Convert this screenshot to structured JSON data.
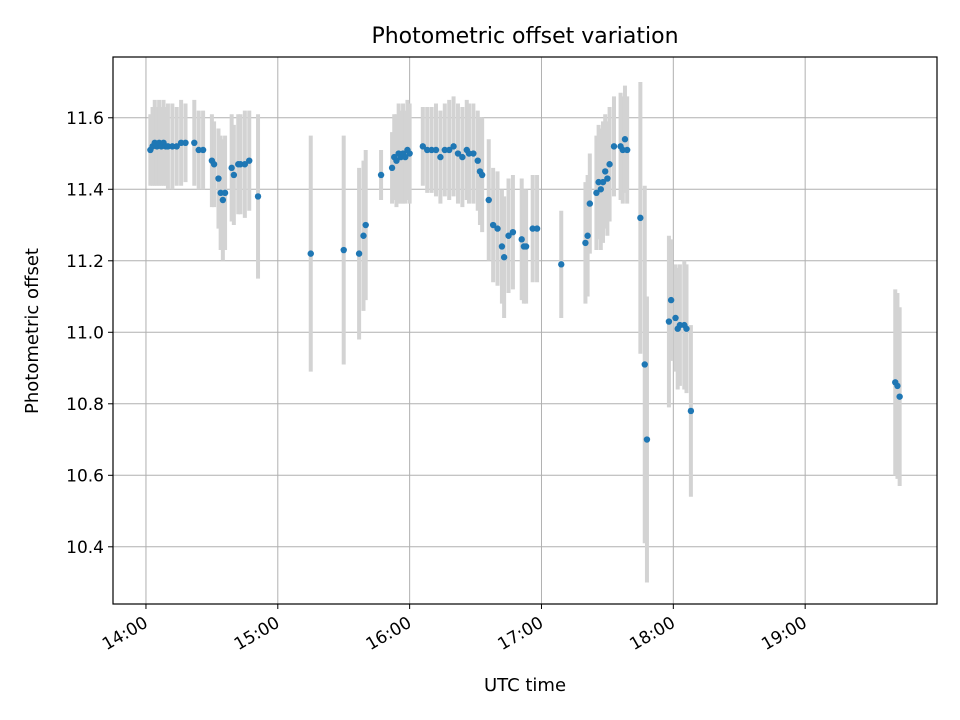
{
  "chart_data": {
    "type": "scatter",
    "title": "Photometric offset variation",
    "xlabel": "UTC time",
    "ylabel": "Photometric offset",
    "xlim": [
      "13:45",
      "20:00"
    ],
    "ylim": [
      10.24,
      11.77
    ],
    "x_ticks": [
      "14:00",
      "15:00",
      "16:00",
      "17:00",
      "18:00",
      "19:00"
    ],
    "y_ticks": [
      10.4,
      10.6,
      10.8,
      11.0,
      11.2,
      11.4,
      11.6
    ],
    "grid": true,
    "colors": {
      "point": "#1f77b4",
      "errorbar": "#d3d3d3",
      "grid": "#b0b0b0"
    },
    "points": [
      {
        "t": "14:02",
        "y": 11.51,
        "err": 0.1
      },
      {
        "t": "14:03",
        "y": 11.52,
        "err": 0.11
      },
      {
        "t": "14:04",
        "y": 11.53,
        "err": 0.12
      },
      {
        "t": "14:05",
        "y": 11.52,
        "err": 0.11
      },
      {
        "t": "14:06",
        "y": 11.53,
        "err": 0.12
      },
      {
        "t": "14:07",
        "y": 11.52,
        "err": 0.11
      },
      {
        "t": "14:08",
        "y": 11.53,
        "err": 0.12
      },
      {
        "t": "14:09",
        "y": 11.52,
        "err": 0.11
      },
      {
        "t": "14:10",
        "y": 11.52,
        "err": 0.12
      },
      {
        "t": "14:12",
        "y": 11.52,
        "err": 0.12
      },
      {
        "t": "14:14",
        "y": 11.52,
        "err": 0.11
      },
      {
        "t": "14:16",
        "y": 11.53,
        "err": 0.12
      },
      {
        "t": "14:18",
        "y": 11.53,
        "err": 0.11
      },
      {
        "t": "14:22",
        "y": 11.53,
        "err": 0.12
      },
      {
        "t": "14:24",
        "y": 11.51,
        "err": 0.11
      },
      {
        "t": "14:26",
        "y": 11.51,
        "err": 0.11
      },
      {
        "t": "14:30",
        "y": 11.48,
        "err": 0.13
      },
      {
        "t": "14:31",
        "y": 11.47,
        "err": 0.12
      },
      {
        "t": "14:33",
        "y": 11.43,
        "err": 0.14
      },
      {
        "t": "14:34",
        "y": 11.39,
        "err": 0.16
      },
      {
        "t": "14:35",
        "y": 11.37,
        "err": 0.17
      },
      {
        "t": "14:36",
        "y": 11.39,
        "err": 0.16
      },
      {
        "t": "14:39",
        "y": 11.46,
        "err": 0.15
      },
      {
        "t": "14:40",
        "y": 11.44,
        "err": 0.14
      },
      {
        "t": "14:42",
        "y": 11.47,
        "err": 0.14
      },
      {
        "t": "14:43",
        "y": 11.47,
        "err": 0.14
      },
      {
        "t": "14:45",
        "y": 11.47,
        "err": 0.15
      },
      {
        "t": "14:47",
        "y": 11.48,
        "err": 0.14
      },
      {
        "t": "14:51",
        "y": 11.38,
        "err": 0.23
      },
      {
        "t": "15:15",
        "y": 11.22,
        "err": 0.33
      },
      {
        "t": "15:30",
        "y": 11.23,
        "err": 0.32
      },
      {
        "t": "15:37",
        "y": 11.22,
        "err": 0.24
      },
      {
        "t": "15:39",
        "y": 11.27,
        "err": 0.21
      },
      {
        "t": "15:40",
        "y": 11.3,
        "err": 0.21
      },
      {
        "t": "15:47",
        "y": 11.44,
        "err": 0.07
      },
      {
        "t": "15:52",
        "y": 11.46,
        "err": 0.1
      },
      {
        "t": "15:53",
        "y": 11.49,
        "err": 0.12
      },
      {
        "t": "15:54",
        "y": 11.48,
        "err": 0.13
      },
      {
        "t": "15:55",
        "y": 11.5,
        "err": 0.14
      },
      {
        "t": "15:56",
        "y": 11.49,
        "err": 0.13
      },
      {
        "t": "15:57",
        "y": 11.5,
        "err": 0.14
      },
      {
        "t": "15:58",
        "y": 11.49,
        "err": 0.13
      },
      {
        "t": "15:59",
        "y": 11.51,
        "err": 0.14
      },
      {
        "t": "16:00",
        "y": 11.5,
        "err": 0.14
      },
      {
        "t": "16:06",
        "y": 11.52,
        "err": 0.11
      },
      {
        "t": "16:08",
        "y": 11.51,
        "err": 0.12
      },
      {
        "t": "16:10",
        "y": 11.51,
        "err": 0.12
      },
      {
        "t": "16:12",
        "y": 11.51,
        "err": 0.13
      },
      {
        "t": "16:14",
        "y": 11.49,
        "err": 0.13
      },
      {
        "t": "16:16",
        "y": 11.51,
        "err": 0.13
      },
      {
        "t": "16:18",
        "y": 11.51,
        "err": 0.14
      },
      {
        "t": "16:20",
        "y": 11.52,
        "err": 0.14
      },
      {
        "t": "16:22",
        "y": 11.5,
        "err": 0.14
      },
      {
        "t": "16:24",
        "y": 11.49,
        "err": 0.14
      },
      {
        "t": "16:26",
        "y": 11.51,
        "err": 0.14
      },
      {
        "t": "16:27",
        "y": 11.5,
        "err": 0.14
      },
      {
        "t": "16:29",
        "y": 11.5,
        "err": 0.14
      },
      {
        "t": "16:31",
        "y": 11.48,
        "err": 0.14
      },
      {
        "t": "16:32",
        "y": 11.45,
        "err": 0.15
      },
      {
        "t": "16:33",
        "y": 11.44,
        "err": 0.16
      },
      {
        "t": "16:36",
        "y": 11.37,
        "err": 0.17
      },
      {
        "t": "16:38",
        "y": 11.3,
        "err": 0.16
      },
      {
        "t": "16:40",
        "y": 11.29,
        "err": 0.16
      },
      {
        "t": "16:42",
        "y": 11.24,
        "err": 0.16
      },
      {
        "t": "16:43",
        "y": 11.21,
        "err": 0.17
      },
      {
        "t": "16:45",
        "y": 11.27,
        "err": 0.16
      },
      {
        "t": "16:47",
        "y": 11.28,
        "err": 0.16
      },
      {
        "t": "16:51",
        "y": 11.26,
        "err": 0.17
      },
      {
        "t": "16:52",
        "y": 11.24,
        "err": 0.16
      },
      {
        "t": "16:53",
        "y": 11.24,
        "err": 0.16
      },
      {
        "t": "16:56",
        "y": 11.29,
        "err": 0.15
      },
      {
        "t": "16:58",
        "y": 11.29,
        "err": 0.15
      },
      {
        "t": "17:09",
        "y": 11.19,
        "err": 0.15
      },
      {
        "t": "17:20",
        "y": 11.25,
        "err": 0.17
      },
      {
        "t": "17:21",
        "y": 11.27,
        "err": 0.17
      },
      {
        "t": "17:22",
        "y": 11.36,
        "err": 0.14
      },
      {
        "t": "17:25",
        "y": 11.39,
        "err": 0.16
      },
      {
        "t": "17:26",
        "y": 11.42,
        "err": 0.16
      },
      {
        "t": "17:27",
        "y": 11.4,
        "err": 0.17
      },
      {
        "t": "17:28",
        "y": 11.42,
        "err": 0.17
      },
      {
        "t": "17:29",
        "y": 11.45,
        "err": 0.16
      },
      {
        "t": "17:30",
        "y": 11.43,
        "err": 0.16
      },
      {
        "t": "17:31",
        "y": 11.47,
        "err": 0.16
      },
      {
        "t": "17:33",
        "y": 11.52,
        "err": 0.14
      },
      {
        "t": "17:36",
        "y": 11.52,
        "err": 0.15
      },
      {
        "t": "17:37",
        "y": 11.51,
        "err": 0.15
      },
      {
        "t": "17:38",
        "y": 11.54,
        "err": 0.15
      },
      {
        "t": "17:39",
        "y": 11.51,
        "err": 0.15
      },
      {
        "t": "17:45",
        "y": 11.32,
        "err": 0.38
      },
      {
        "t": "17:47",
        "y": 10.91,
        "err": 0.5
      },
      {
        "t": "17:48",
        "y": 10.7,
        "err": 0.4
      },
      {
        "t": "17:58",
        "y": 11.03,
        "err": 0.24
      },
      {
        "t": "17:59",
        "y": 11.09,
        "err": 0.17
      },
      {
        "t": "18:01",
        "y": 11.04,
        "err": 0.15
      },
      {
        "t": "18:02",
        "y": 11.01,
        "err": 0.17
      },
      {
        "t": "18:03",
        "y": 11.02,
        "err": 0.17
      },
      {
        "t": "18:05",
        "y": 11.02,
        "err": 0.18
      },
      {
        "t": "18:06",
        "y": 11.01,
        "err": 0.18
      },
      {
        "t": "18:08",
        "y": 10.78,
        "err": 0.24
      },
      {
        "t": "19:41",
        "y": 10.86,
        "err": 0.26
      },
      {
        "t": "19:42",
        "y": 10.85,
        "err": 0.26
      },
      {
        "t": "19:43",
        "y": 10.82,
        "err": 0.25
      }
    ]
  }
}
